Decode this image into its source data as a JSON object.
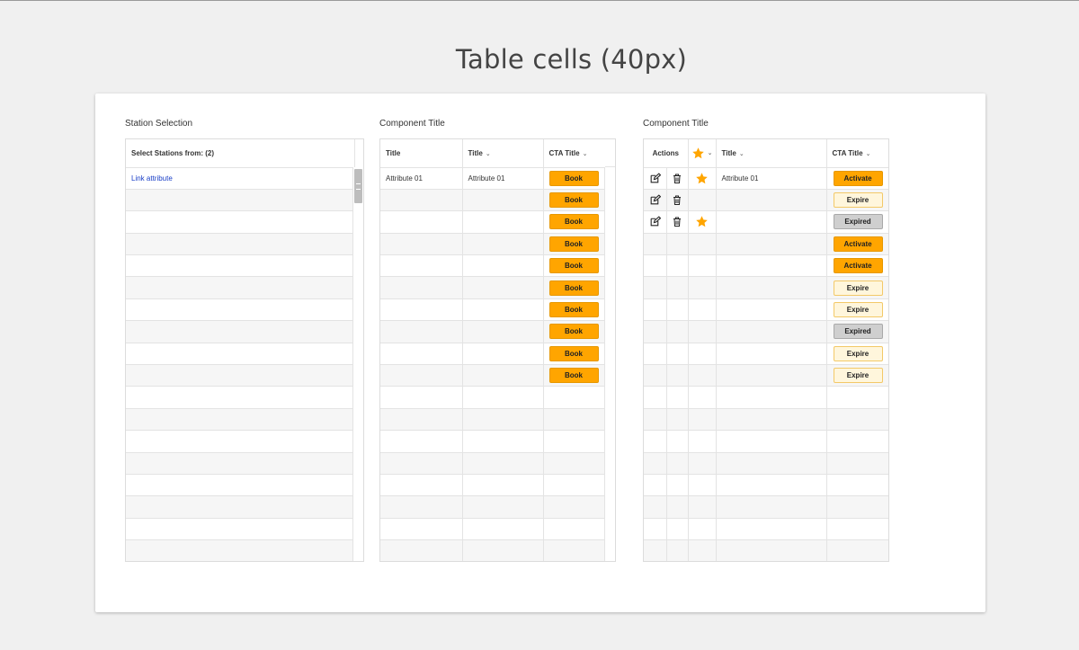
{
  "page": {
    "title": "Table cells (40px)"
  },
  "colors": {
    "orange": "#ffa500",
    "star": "#ffa500",
    "link": "#1a3fc7"
  },
  "table1": {
    "title": "Station Selection",
    "header": "Select Stations from: (2)",
    "rows": [
      "Link attribute"
    ]
  },
  "table2": {
    "title": "Component Title",
    "headers": [
      "Title",
      "Title",
      "CTA Title"
    ],
    "rows": [
      {
        "c1": "Attribute 01",
        "c2": "Attribute 01",
        "cta": "Book"
      },
      {
        "c1": "",
        "c2": "",
        "cta": "Book"
      },
      {
        "c1": "",
        "c2": "",
        "cta": "Book"
      },
      {
        "c1": "",
        "c2": "",
        "cta": "Book"
      },
      {
        "c1": "",
        "c2": "",
        "cta": "Book"
      },
      {
        "c1": "",
        "c2": "",
        "cta": "Book"
      },
      {
        "c1": "",
        "c2": "",
        "cta": "Book"
      },
      {
        "c1": "",
        "c2": "",
        "cta": "Book"
      },
      {
        "c1": "",
        "c2": "",
        "cta": "Book"
      },
      {
        "c1": "",
        "c2": "",
        "cta": "Book"
      }
    ]
  },
  "table3": {
    "title": "Component Title",
    "headers": {
      "actions": "Actions",
      "title": "Title",
      "cta": "CTA Title"
    },
    "rows": [
      {
        "actions": true,
        "star": true,
        "title": "Attribute 01",
        "cta": "Activate",
        "style": "orange"
      },
      {
        "actions": true,
        "star": false,
        "title": "",
        "cta": "Expire",
        "style": "light"
      },
      {
        "actions": true,
        "star": true,
        "title": "",
        "cta": "Expired",
        "style": "grey"
      },
      {
        "actions": false,
        "star": false,
        "title": "",
        "cta": "Activate",
        "style": "orange"
      },
      {
        "actions": false,
        "star": false,
        "title": "",
        "cta": "Activate",
        "style": "orange"
      },
      {
        "actions": false,
        "star": false,
        "title": "",
        "cta": "Expire",
        "style": "light"
      },
      {
        "actions": false,
        "star": false,
        "title": "",
        "cta": "Expire",
        "style": "light"
      },
      {
        "actions": false,
        "star": false,
        "title": "",
        "cta": "Expired",
        "style": "grey"
      },
      {
        "actions": false,
        "star": false,
        "title": "",
        "cta": "Expire",
        "style": "light"
      },
      {
        "actions": false,
        "star": false,
        "title": "",
        "cta": "Expire",
        "style": "light"
      }
    ]
  }
}
